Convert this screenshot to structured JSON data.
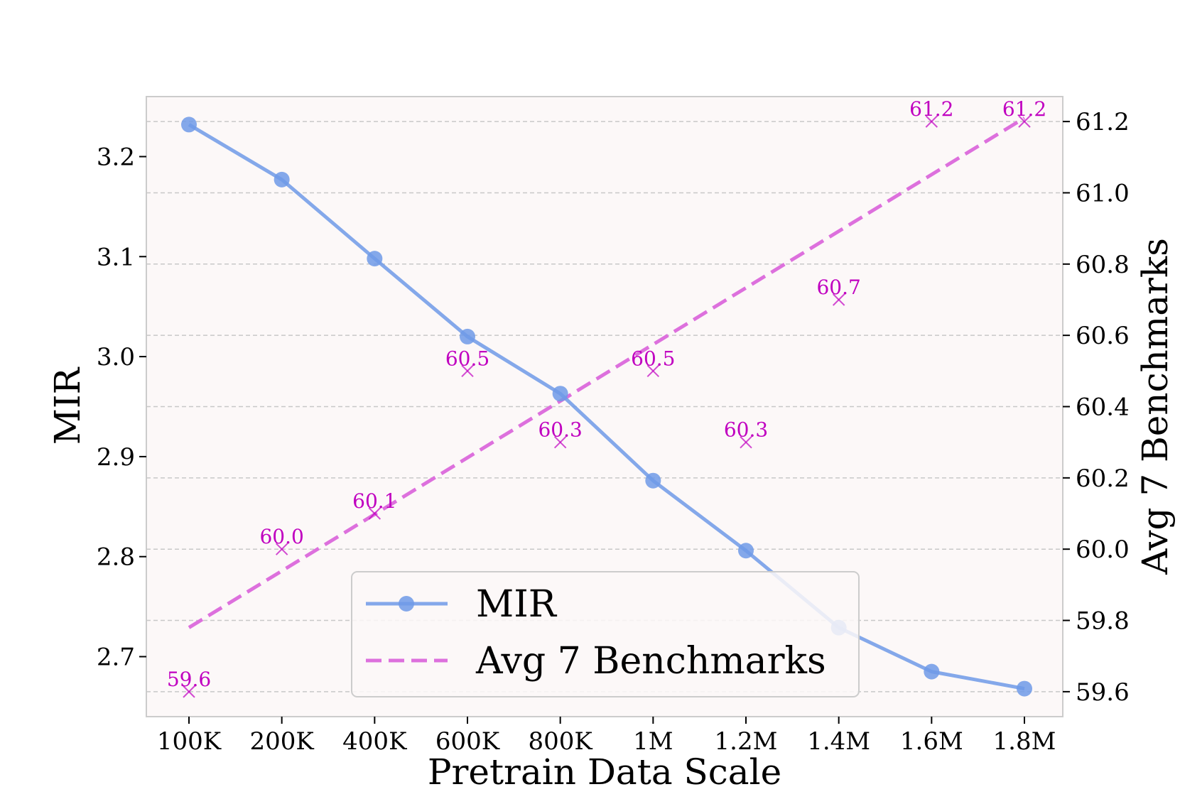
{
  "chart_data": {
    "type": "line",
    "categories": [
      "100K",
      "200K",
      "400K",
      "600K",
      "800K",
      "1M",
      "1.2M",
      "1.4M",
      "1.6M",
      "1.8M"
    ],
    "xlabel": "Pretrain Data Scale",
    "ylabel_left": "MIR",
    "ylabel_right": "Avg 7 Benchmarks",
    "ylim_left": [
      2.64,
      3.26
    ],
    "ylim_right": [
      59.53,
      61.27
    ],
    "yticks_left": [
      "2.7",
      "2.8",
      "2.9",
      "3.0",
      "3.1",
      "3.2"
    ],
    "yticks_right": [
      "59.6",
      "59.8",
      "60.0",
      "60.2",
      "60.4",
      "60.6",
      "60.8",
      "61.0",
      "61.2"
    ],
    "grid": "horizontal dashed",
    "legend_position": "lower-center",
    "series": [
      {
        "name": "MIR",
        "axis": "left",
        "style": "solid line with circle markers",
        "color": "#6f9ae8",
        "values": [
          3.232,
          3.177,
          3.098,
          3.02,
          2.963,
          2.876,
          2.806,
          2.729,
          2.685,
          2.668
        ]
      },
      {
        "name": "Avg 7 Benchmarks",
        "axis": "right",
        "style": "x markers with dashed linear trend",
        "color": "#c000c0",
        "values": [
          59.6,
          60.0,
          60.1,
          60.5,
          60.3,
          60.5,
          60.3,
          60.7,
          61.2,
          61.2
        ],
        "labels": [
          "59.6",
          "60.0",
          "60.1",
          "60.5",
          "60.3",
          "60.5",
          "60.3",
          "60.7",
          "61.2",
          "61.2"
        ],
        "trend": {
          "color": "#dd70dd",
          "start": 59.78,
          "end": 61.21
        }
      }
    ]
  },
  "colors": {
    "plot_background": "#fcf8f8",
    "mir_line": "#6f9ae8",
    "benchmark_marker": "#c000c0",
    "trend_line": "#dd70dd",
    "grid": "#c8c8c8"
  }
}
